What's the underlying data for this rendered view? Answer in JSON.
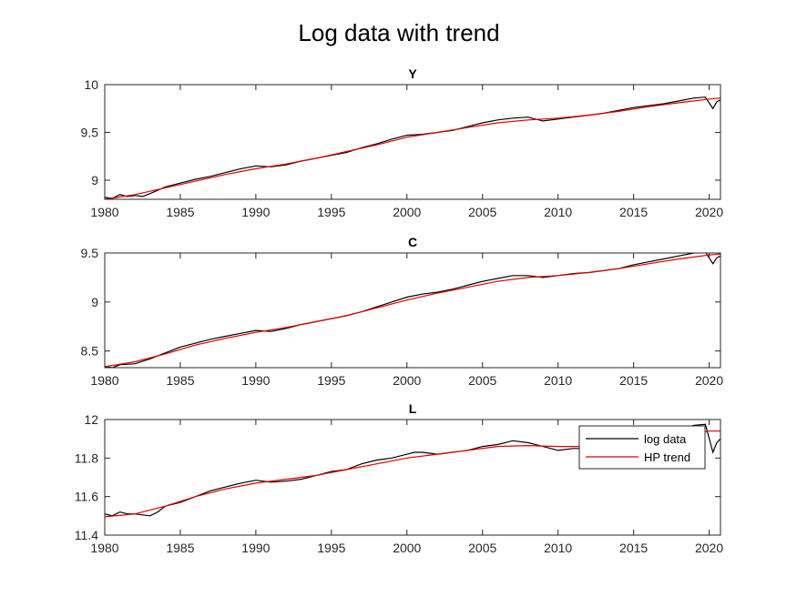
{
  "figure": {
    "title": "Log data with trend"
  },
  "legend": {
    "placement": "top-right of third panel",
    "entries": [
      {
        "label": "log data",
        "color": "#000000"
      },
      {
        "label": "HP trend",
        "color": "#e00000"
      }
    ]
  },
  "chart_data": [
    {
      "type": "line",
      "title": "Y",
      "xlim": [
        1980,
        2020.75
      ],
      "ylim": [
        8.8,
        10
      ],
      "xticks": [
        1980,
        1985,
        1990,
        1995,
        2000,
        2005,
        2010,
        2015,
        2020
      ],
      "xtick_labels": [
        "1980",
        "1985",
        "1990",
        "1995",
        "2000",
        "2005",
        "2010",
        "2015",
        "2020"
      ],
      "yticks": [
        9,
        9.5,
        10
      ],
      "ytick_labels": [
        "9",
        "9.5",
        "10"
      ],
      "grid": false,
      "series": [
        {
          "name": "log data",
          "color": "#000000",
          "x": [
            1980,
            1980.5,
            1981,
            1981.5,
            1982,
            1982.5,
            1983,
            1984,
            1985,
            1986,
            1987,
            1988,
            1989,
            1990,
            1991,
            1992,
            1993,
            1994,
            1995,
            1996,
            1997,
            1998,
            1999,
            2000,
            2001,
            2002,
            2003,
            2004,
            2005,
            2006,
            2007,
            2008,
            2009,
            2010,
            2011,
            2012,
            2013,
            2014,
            2015,
            2016,
            2017,
            2018,
            2019,
            2019.75,
            2020.25,
            2020.5,
            2020.75
          ],
          "y": [
            8.82,
            8.81,
            8.85,
            8.83,
            8.84,
            8.83,
            8.86,
            8.93,
            8.97,
            9.01,
            9.04,
            9.08,
            9.12,
            9.15,
            9.14,
            9.16,
            9.2,
            9.23,
            9.26,
            9.29,
            9.34,
            9.38,
            9.43,
            9.47,
            9.48,
            9.5,
            9.52,
            9.56,
            9.6,
            9.63,
            9.65,
            9.66,
            9.62,
            9.64,
            9.66,
            9.68,
            9.7,
            9.73,
            9.76,
            9.78,
            9.8,
            9.83,
            9.86,
            9.87,
            9.75,
            9.82,
            9.84
          ]
        },
        {
          "name": "HP trend",
          "color": "#e00000",
          "x": [
            1980,
            1982,
            1984,
            1986,
            1988,
            1990,
            1992,
            1994,
            1996,
            1998,
            2000,
            2002,
            2004,
            2006,
            2008,
            2010,
            2012,
            2014,
            2016,
            2018,
            2020,
            2020.75
          ],
          "y": [
            8.8,
            8.85,
            8.92,
            8.99,
            9.06,
            9.12,
            9.17,
            9.23,
            9.3,
            9.37,
            9.45,
            9.5,
            9.55,
            9.6,
            9.63,
            9.65,
            9.68,
            9.72,
            9.77,
            9.81,
            9.85,
            9.86
          ]
        }
      ]
    },
    {
      "type": "line",
      "title": "C",
      "xlim": [
        1980,
        2020.75
      ],
      "ylim": [
        8.33,
        9.5
      ],
      "xticks": [
        1980,
        1985,
        1990,
        1995,
        2000,
        2005,
        2010,
        2015,
        2020
      ],
      "xtick_labels": [
        "1980",
        "1985",
        "1990",
        "1995",
        "2000",
        "2005",
        "2010",
        "2015",
        "2020"
      ],
      "yticks": [
        8.5,
        9,
        9.5
      ],
      "ytick_labels": [
        "8.5",
        "9",
        "9.5"
      ],
      "grid": false,
      "series": [
        {
          "name": "log data",
          "color": "#000000",
          "x": [
            1980,
            1980.5,
            1981,
            1982,
            1983,
            1984,
            1985,
            1986,
            1987,
            1988,
            1989,
            1990,
            1991,
            1992,
            1993,
            1994,
            1995,
            1996,
            1997,
            1998,
            1999,
            2000,
            2001,
            2002,
            2003,
            2004,
            2005,
            2006,
            2007,
            2008,
            2009,
            2010,
            2011,
            2012,
            2013,
            2014,
            2015,
            2016,
            2017,
            2018,
            2019,
            2019.75,
            2020.25,
            2020.5,
            2020.75
          ],
          "y": [
            8.34,
            8.33,
            8.36,
            8.37,
            8.42,
            8.48,
            8.54,
            8.58,
            8.62,
            8.65,
            8.68,
            8.71,
            8.7,
            8.73,
            8.77,
            8.8,
            8.83,
            8.86,
            8.9,
            8.95,
            9.0,
            9.05,
            9.08,
            9.1,
            9.13,
            9.17,
            9.21,
            9.24,
            9.27,
            9.27,
            9.25,
            9.27,
            9.29,
            9.3,
            9.32,
            9.34,
            9.38,
            9.41,
            9.44,
            9.47,
            9.5,
            9.51,
            9.39,
            9.45,
            9.47
          ]
        },
        {
          "name": "HP trend",
          "color": "#e00000",
          "x": [
            1980,
            1982,
            1984,
            1986,
            1988,
            1990,
            1992,
            1994,
            1996,
            1998,
            2000,
            2002,
            2004,
            2006,
            2008,
            2010,
            2012,
            2014,
            2016,
            2018,
            2020,
            2020.75
          ],
          "y": [
            8.34,
            8.39,
            8.47,
            8.56,
            8.63,
            8.69,
            8.74,
            8.8,
            8.86,
            8.94,
            9.02,
            9.09,
            9.15,
            9.21,
            9.25,
            9.27,
            9.3,
            9.34,
            9.39,
            9.44,
            9.48,
            9.49
          ]
        }
      ]
    },
    {
      "type": "line",
      "title": "L",
      "xlim": [
        1980,
        2020.75
      ],
      "ylim": [
        11.4,
        12
      ],
      "xticks": [
        1980,
        1985,
        1990,
        1995,
        2000,
        2005,
        2010,
        2015,
        2020
      ],
      "xtick_labels": [
        "1980",
        "1985",
        "1990",
        "1995",
        "2000",
        "2005",
        "2010",
        "2015",
        "2020"
      ],
      "yticks": [
        11.4,
        11.6,
        11.8,
        12
      ],
      "ytick_labels": [
        "11.4",
        "11.6",
        "11.8",
        "12"
      ],
      "grid": false,
      "series": [
        {
          "name": "log data",
          "color": "#000000",
          "x": [
            1980,
            1980.5,
            1981,
            1981.5,
            1982,
            1982.5,
            1983,
            1983.5,
            1984,
            1985,
            1986,
            1987,
            1988,
            1989,
            1990,
            1991,
            1992,
            1993,
            1994,
            1995,
            1996,
            1997,
            1998,
            1999,
            2000,
            2000.5,
            2001,
            2002,
            2003,
            2004,
            2005,
            2006,
            2007,
            2008,
            2009,
            2010,
            2011,
            2012,
            2013,
            2014,
            2015,
            2016,
            2017,
            2018,
            2019,
            2019.75,
            2020.25,
            2020.5,
            2020.75
          ],
          "y": [
            11.51,
            11.5,
            11.52,
            11.51,
            11.51,
            11.505,
            11.5,
            11.52,
            11.55,
            11.57,
            11.6,
            11.63,
            11.65,
            11.67,
            11.685,
            11.675,
            11.68,
            11.69,
            11.71,
            11.73,
            11.74,
            11.77,
            11.79,
            11.8,
            11.82,
            11.83,
            11.83,
            11.82,
            11.83,
            11.84,
            11.86,
            11.87,
            11.89,
            11.88,
            11.86,
            11.84,
            11.85,
            11.85,
            11.87,
            11.88,
            11.9,
            11.92,
            11.93,
            11.95,
            11.97,
            11.975,
            11.83,
            11.88,
            11.9
          ]
        },
        {
          "name": "HP trend",
          "color": "#e00000",
          "x": [
            1980,
            1982,
            1984,
            1986,
            1988,
            1990,
            1992,
            1994,
            1996,
            1998,
            2000,
            2002,
            2004,
            2006,
            2008,
            2010,
            2012,
            2014,
            2016,
            2018,
            2020,
            2020.75
          ],
          "y": [
            11.495,
            11.51,
            11.55,
            11.6,
            11.64,
            11.67,
            11.69,
            11.71,
            11.74,
            11.77,
            11.8,
            11.82,
            11.84,
            11.86,
            11.865,
            11.86,
            11.86,
            11.87,
            11.89,
            11.91,
            11.94,
            11.94
          ]
        }
      ]
    }
  ]
}
